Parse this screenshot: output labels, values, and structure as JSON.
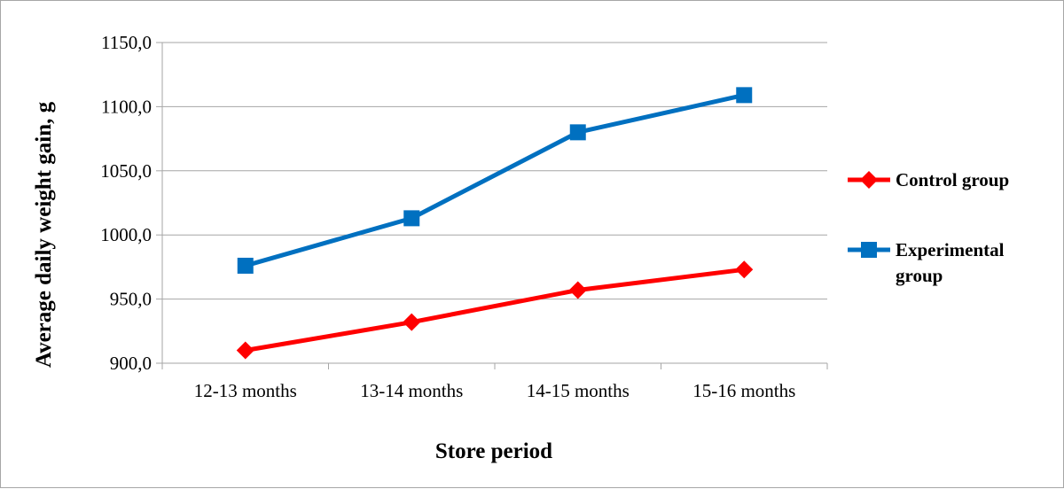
{
  "chart_data": {
    "type": "line",
    "categories": [
      "12-13 months",
      "13-14 months",
      "14-15 months",
      "15-16 months"
    ],
    "series": [
      {
        "name": "Control group",
        "name_lines": [
          "Control group"
        ],
        "values": [
          910,
          932,
          957,
          973
        ],
        "color": "#ff0000",
        "marker": "diamond"
      },
      {
        "name": "Experimental group",
        "name_lines": [
          "Experimental",
          "group"
        ],
        "values": [
          976,
          1013,
          1080,
          1109
        ],
        "color": "#0070c0",
        "marker": "square"
      }
    ],
    "yticks": [
      "900,0",
      "950,0",
      "1000,0",
      "1050,0",
      "1100,0",
      "1150,0"
    ],
    "ylim": [
      900,
      1150
    ],
    "xlabel": "Store period",
    "ylabel": "Average daily weight gain, g",
    "grid": true,
    "legend": "right"
  }
}
